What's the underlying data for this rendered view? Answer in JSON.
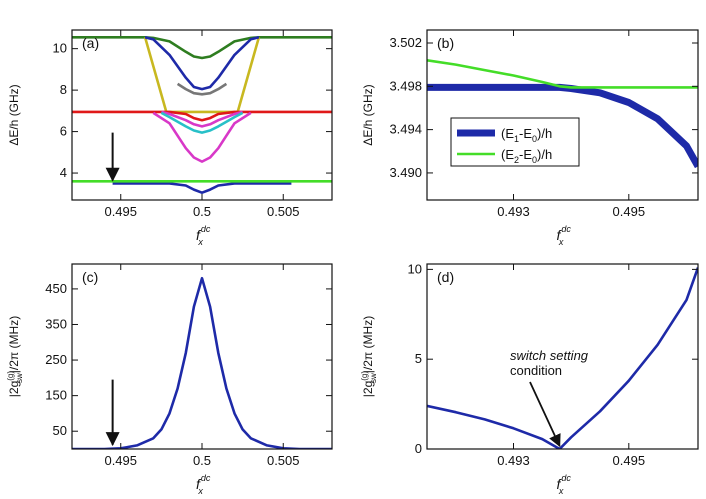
{
  "chart_data": [
    {
      "panel": "a",
      "type": "line",
      "label": "(a)",
      "ylabel": "ΔE/h (GHz)",
      "xlabel_main": "f",
      "xlabel_sub": "x",
      "xlabel_sup": "dc",
      "xlim": [
        0.492,
        0.508
      ],
      "ylim": [
        2.7,
        10.9
      ],
      "xticks": [
        0.495,
        0.5,
        0.505
      ],
      "xtick_labels": [
        "0.495",
        "0.5",
        "0.505"
      ],
      "yticks": [
        4,
        6,
        8,
        10
      ],
      "ytick_labels": [
        "4",
        "6",
        "8",
        "10"
      ],
      "arrow": {
        "x": 0.4945,
        "y_from": 5.95,
        "y_to": 3.65
      },
      "series": [
        {
          "name": "green",
          "color": "#2e7d20",
          "x": [
            0.492,
            0.4965,
            0.497,
            0.498,
            0.499,
            0.4995,
            0.5,
            0.5005,
            0.501,
            0.502,
            0.503,
            0.5035,
            0.508
          ],
          "y": [
            10.55,
            10.55,
            10.52,
            10.35,
            9.85,
            9.62,
            9.55,
            9.62,
            9.85,
            10.35,
            10.52,
            10.55,
            10.55
          ]
        },
        {
          "name": "yellow",
          "color": "#c8b820",
          "x": [
            0.4965,
            0.4978,
            0.499,
            0.5,
            0.501,
            0.5022,
            0.5035
          ],
          "y": [
            10.55,
            6.95,
            6.95,
            6.95,
            6.95,
            6.95,
            10.55
          ]
        },
        {
          "name": "blue-upper",
          "color": "#1e2aa8",
          "x": [
            0.4965,
            0.497,
            0.498,
            0.499,
            0.4995,
            0.5,
            0.5005,
            0.501,
            0.502,
            0.503,
            0.5035
          ],
          "y": [
            10.55,
            10.45,
            9.7,
            8.6,
            8.15,
            8.05,
            8.15,
            8.6,
            9.7,
            10.45,
            10.55
          ]
        },
        {
          "name": "gray",
          "color": "#777777",
          "x": [
            0.4985,
            0.499,
            0.4995,
            0.5,
            0.5005,
            0.501,
            0.5015
          ],
          "y": [
            8.3,
            8.05,
            7.85,
            7.8,
            7.85,
            8.05,
            8.3
          ]
        },
        {
          "name": "red",
          "color": "#e01818",
          "x": [
            0.492,
            0.497,
            0.498,
            0.499,
            0.4995,
            0.5,
            0.5005,
            0.501,
            0.502,
            0.503,
            0.508
          ],
          "y": [
            6.95,
            6.95,
            6.95,
            6.85,
            6.65,
            6.55,
            6.65,
            6.85,
            6.95,
            6.95,
            6.95
          ]
        },
        {
          "name": "magenta",
          "color": "#d838c8",
          "x": [
            0.4975,
            0.498,
            0.499,
            0.4995,
            0.5,
            0.5005,
            0.501,
            0.502,
            0.5025
          ],
          "y": [
            6.95,
            6.85,
            6.55,
            6.35,
            6.25,
            6.35,
            6.55,
            6.85,
            6.95
          ]
        },
        {
          "name": "cyan",
          "color": "#28c0c8",
          "x": [
            0.4975,
            0.498,
            0.499,
            0.4995,
            0.5,
            0.5005,
            0.501,
            0.502,
            0.5025
          ],
          "y": [
            6.9,
            6.7,
            6.25,
            6.05,
            5.95,
            6.05,
            6.25,
            6.7,
            6.9
          ]
        },
        {
          "name": "magenta-lower",
          "color": "#d838c8",
          "x": [
            0.497,
            0.498,
            0.4985,
            0.499,
            0.4995,
            0.5,
            0.5005,
            0.501,
            0.5015,
            0.502,
            0.503
          ],
          "y": [
            6.9,
            6.4,
            5.8,
            5.2,
            4.75,
            4.55,
            4.75,
            5.2,
            5.8,
            6.4,
            6.9
          ]
        },
        {
          "name": "blue-lower",
          "color": "#1e2aa8",
          "x": [
            0.4945,
            0.498,
            0.499,
            0.4995,
            0.5,
            0.5005,
            0.501,
            0.502,
            0.5055
          ],
          "y": [
            3.5,
            3.5,
            3.4,
            3.2,
            3.05,
            3.2,
            3.4,
            3.5,
            3.5
          ]
        },
        {
          "name": "light-green",
          "color": "#44dd28",
          "x": [
            0.492,
            0.508
          ],
          "y": [
            3.6,
            3.6
          ]
        }
      ]
    },
    {
      "panel": "b",
      "type": "line",
      "label": "(b)",
      "ylabel": "ΔE/h (GHz)",
      "xlabel_main": "f",
      "xlabel_sub": "x",
      "xlabel_sup": "dc",
      "xlim": [
        0.4915,
        0.4962
      ],
      "ylim": [
        3.4875,
        3.5032
      ],
      "xticks": [
        0.493,
        0.495
      ],
      "xtick_labels": [
        "0.493",
        "0.495"
      ],
      "yticks": [
        3.49,
        3.494,
        3.498,
        3.502
      ],
      "ytick_labels": [
        "3.490",
        "3.494",
        "3.498",
        "3.502"
      ],
      "legend": {
        "placement": "lower-left"
      },
      "series": [
        {
          "name": "(E1-E0)/h",
          "legend_main": "(E",
          "legend_sub1": "1",
          "legend_mid": "-E",
          "legend_sub2": "0",
          "legend_tail": ")/h",
          "color": "#1e2aa8",
          "width": "thick",
          "x": [
            0.4915,
            0.492,
            0.4925,
            0.493,
            0.4935,
            0.4938,
            0.494,
            0.4945,
            0.495,
            0.4955,
            0.496,
            0.4962
          ],
          "y": [
            3.4979,
            3.4979,
            3.4979,
            3.4979,
            3.4979,
            3.4979,
            3.4978,
            3.4974,
            3.4965,
            3.495,
            3.4925,
            3.4906
          ]
        },
        {
          "name": "(E2-E0)/h",
          "legend_main": "(E",
          "legend_sub1": "2",
          "legend_mid": "-E",
          "legend_sub2": "0",
          "legend_tail": ")/h",
          "color": "#44dd28",
          "width": "thin",
          "x": [
            0.4915,
            0.492,
            0.4925,
            0.493,
            0.4935,
            0.4938,
            0.494,
            0.4962
          ],
          "y": [
            3.5004,
            3.5,
            3.4995,
            3.499,
            3.4984,
            3.498,
            3.4979,
            3.4979
          ]
        }
      ]
    },
    {
      "panel": "c",
      "type": "line",
      "label": "(c)",
      "ylabel_main": "|2g",
      "ylabel_sup": "(g)",
      "ylabel_sub": "sw",
      "ylabel_tail": "|/2π  (MHz)",
      "xlabel_main": "f",
      "xlabel_sub": "x",
      "xlabel_sup": "dc",
      "xlim": [
        0.492,
        0.508
      ],
      "ylim": [
        0,
        520
      ],
      "xticks": [
        0.495,
        0.5,
        0.505
      ],
      "xtick_labels": [
        "0.495",
        "0.5",
        "0.505"
      ],
      "yticks": [
        50,
        150,
        250,
        350,
        450
      ],
      "ytick_labels": [
        "50",
        "150",
        "250",
        "350",
        "450"
      ],
      "arrow": {
        "x": 0.4945,
        "y_from": 195,
        "y_to": 12
      },
      "series": [
        {
          "name": "|2g_sw|/2π",
          "color": "#1e2aa8",
          "x": [
            0.492,
            0.494,
            0.495,
            0.496,
            0.497,
            0.4975,
            0.498,
            0.4985,
            0.499,
            0.4995,
            0.5,
            0.5005,
            0.501,
            0.5015,
            0.502,
            0.5025,
            0.503,
            0.504,
            0.505,
            0.506,
            0.508
          ],
          "y": [
            0,
            0,
            2,
            10,
            30,
            55,
            100,
            170,
            270,
            400,
            480,
            400,
            270,
            170,
            100,
            55,
            30,
            10,
            2,
            0,
            0
          ]
        }
      ]
    },
    {
      "panel": "d",
      "type": "line",
      "label": "(d)",
      "ylabel_main": "|2g",
      "ylabel_sup": "(g)",
      "ylabel_sub": "sw",
      "ylabel_tail": "|/2π  (MHz)",
      "xlabel_main": "f",
      "xlabel_sub": "x",
      "xlabel_sup": "dc",
      "xlim": [
        0.4915,
        0.4962
      ],
      "ylim": [
        0,
        10.3
      ],
      "xticks": [
        0.493,
        0.495
      ],
      "xtick_labels": [
        "0.493",
        "0.495"
      ],
      "yticks": [
        0,
        5,
        10
      ],
      "ytick_labels": [
        "0",
        "5",
        "10"
      ],
      "annotation": {
        "lines": [
          "switch setting",
          "condition"
        ],
        "arrow_to_x": 0.4938,
        "arrow_to_y": 0.0
      },
      "series": [
        {
          "name": "|2g_sw|/2π",
          "color": "#1e2aa8",
          "x": [
            0.4915,
            0.492,
            0.4925,
            0.493,
            0.4935,
            0.4938,
            0.494,
            0.4945,
            0.495,
            0.4955,
            0.496,
            0.4962
          ],
          "y": [
            2.4,
            2.05,
            1.65,
            1.15,
            0.55,
            0.0,
            0.65,
            2.1,
            3.8,
            5.8,
            8.3,
            10.1
          ]
        }
      ]
    }
  ]
}
